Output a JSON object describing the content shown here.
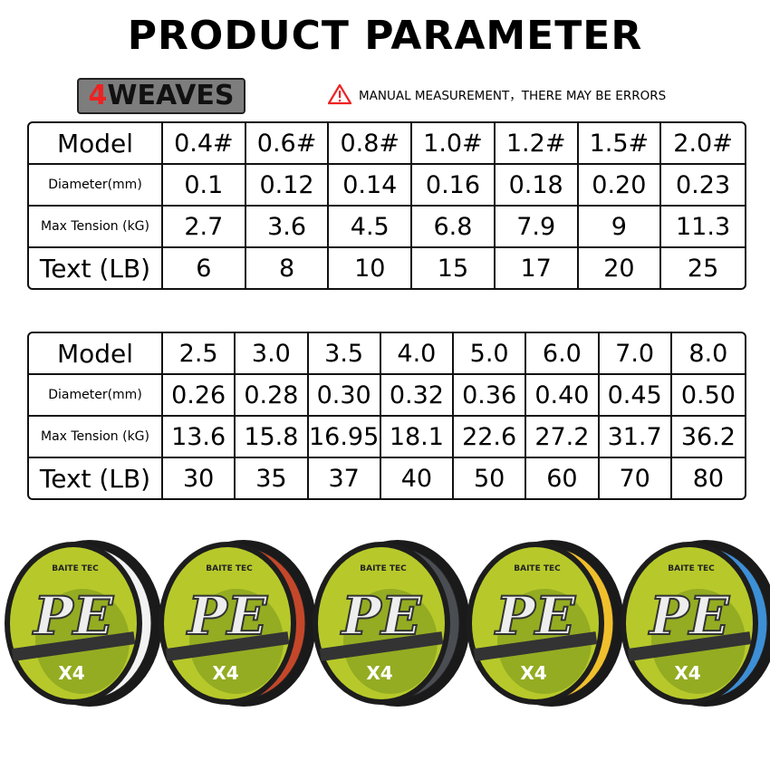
{
  "header": {
    "title": "PRODUCT PARAMETER",
    "badge_number": "4",
    "badge_text": "WEAVES",
    "warning": "MANUAL MEASUREMENT，THERE MAY BE ERRORS"
  },
  "tables": [
    {
      "rows": [
        [
          "Model",
          "0.4#",
          "0.6#",
          "0.8#",
          "1.0#",
          "1.2#",
          "1.5#",
          "2.0#"
        ],
        [
          "Diameter(mm)",
          "0.1",
          "0.12",
          "0.14",
          "0.16",
          "0.18",
          "0.20",
          "0.23"
        ],
        [
          "Max Tension (kG)",
          "2.7",
          "3.6",
          "4.5",
          "6.8",
          "7.9",
          "9",
          "11.3"
        ],
        [
          "Text (LB)",
          "6",
          "8",
          "10",
          "15",
          "17",
          "20",
          "25"
        ]
      ]
    },
    {
      "rows": [
        [
          "Model",
          "2.5",
          "3.0",
          "3.5",
          "4.0",
          "5.0",
          "6.0",
          "7.0",
          "8.0"
        ],
        [
          "Diameter(mm)",
          "0.26",
          "0.28",
          "0.30",
          "0.32",
          "0.36",
          "0.40",
          "0.45",
          "0.50"
        ],
        [
          "Max Tension (kG)",
          "13.6",
          "15.8",
          "16.95",
          "18.1",
          "22.6",
          "27.2",
          "31.7",
          "36.2"
        ],
        [
          "Text (LB)",
          "30",
          "35",
          "37",
          "40",
          "50",
          "60",
          "70",
          "80"
        ]
      ]
    }
  ],
  "spools": [
    {
      "brand": "BAITE TEC",
      "label": "PE",
      "sub": "X4",
      "color": "#f2f2f2"
    },
    {
      "brand": "BAITE TEC",
      "label": "PE",
      "sub": "X4",
      "color": "#c4472a"
    },
    {
      "brand": "BAITE TEC",
      "label": "PE",
      "sub": "X4",
      "color": "#4a4d52"
    },
    {
      "brand": "BAITE TEC",
      "label": "PE",
      "sub": "X4",
      "color": "#f0bf2c"
    },
    {
      "brand": "BAITE TEC",
      "label": "PE",
      "sub": "X4",
      "color": "#3d8fd6"
    }
  ]
}
